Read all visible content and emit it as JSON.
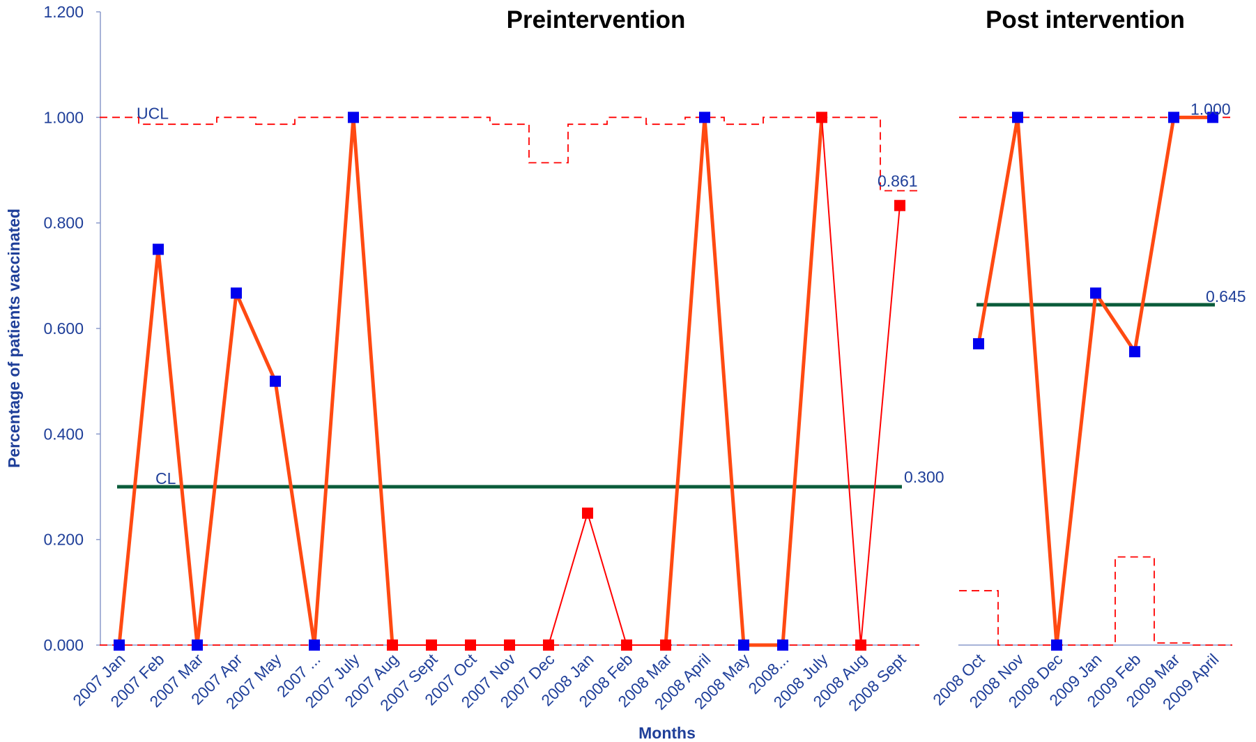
{
  "chart_data": {
    "type": "line",
    "subtype": "control chart (p-chart)",
    "xlabel": "Months",
    "ylabel": "Percentage of patients vaccinated",
    "ylim": [
      0,
      1.2
    ],
    "y_ticks": [
      "0.000",
      "0.200",
      "0.400",
      "0.600",
      "0.800",
      "1.000",
      "1.200"
    ],
    "grid": false,
    "colors": {
      "series_line": "#ff4a12",
      "marker_in_control": "#0000ee",
      "marker_special_cause": "#ff0000",
      "control_limits": "#ff0000",
      "center_line": "#0a5c3a",
      "text": "#1f3f99"
    },
    "segments": [
      {
        "title": "Preintervention",
        "categories": [
          "2007 Jan",
          "2007 Feb",
          "2007 Mar",
          "2007 Apr",
          "2007 May",
          "2007 ...",
          "2007 July",
          "2007 Aug",
          "2007 Sept",
          "2007 Oct",
          "2007 Nov",
          "2007 Dec",
          "2008 Jan",
          "2008 Feb",
          "2008 Mar",
          "2008 April",
          "2008 May",
          "2008...",
          "2008 July",
          "2008 Aug",
          "2008 Sept"
        ],
        "values": [
          0.0,
          0.75,
          0.0,
          0.667,
          0.5,
          0.0,
          1.0,
          0.0,
          0.0,
          0.0,
          0.0,
          0.0,
          0.25,
          0.0,
          0.0,
          1.0,
          0.0,
          0.0,
          1.0,
          0.0,
          0.833
        ],
        "markers": [
          "blue",
          "blue",
          "blue",
          "blue",
          "blue",
          "blue",
          "blue",
          "red",
          "red",
          "red",
          "red",
          "red",
          "red",
          "red",
          "red",
          "blue",
          "blue",
          "blue",
          "red",
          "red",
          "red"
        ],
        "ucl": [
          1.0,
          0.987,
          0.987,
          1.0,
          0.987,
          1.0,
          1.0,
          1.0,
          1.0,
          1.0,
          0.987,
          0.914,
          0.987,
          1.0,
          0.987,
          1.0,
          0.987,
          1.0,
          1.0,
          1.0,
          0.861
        ],
        "lcl": [
          0,
          0,
          0,
          0,
          0,
          0,
          0,
          0,
          0,
          0,
          0,
          0,
          0,
          0,
          0,
          0,
          0,
          0,
          0,
          0,
          0
        ],
        "cl": 0.3,
        "labels": {
          "ucl": "UCL",
          "cl": "CL",
          "cl_value": "0.300",
          "ucl_value": "0.861"
        }
      },
      {
        "title": "Post intervention",
        "categories": [
          "2008 Oct",
          "2008 Nov",
          "2008 Dec",
          "2009 Jan",
          "2009 Feb",
          "2009 Mar",
          "2009 April"
        ],
        "values": [
          0.571,
          1.0,
          0.0,
          0.667,
          0.556,
          1.0,
          1.0
        ],
        "markers": [
          "blue",
          "blue",
          "blue",
          "blue",
          "blue",
          "blue",
          "blue"
        ],
        "ucl": [
          1.0,
          1.0,
          1.0,
          1.0,
          1.0,
          1.0,
          1.0
        ],
        "lcl": [
          0.103,
          0.0,
          0.0,
          0.0,
          0.167,
          0.004,
          0.0
        ],
        "cl": 0.645,
        "labels": {
          "cl_value": "0.645",
          "ucl_value": "1.000"
        }
      }
    ]
  }
}
